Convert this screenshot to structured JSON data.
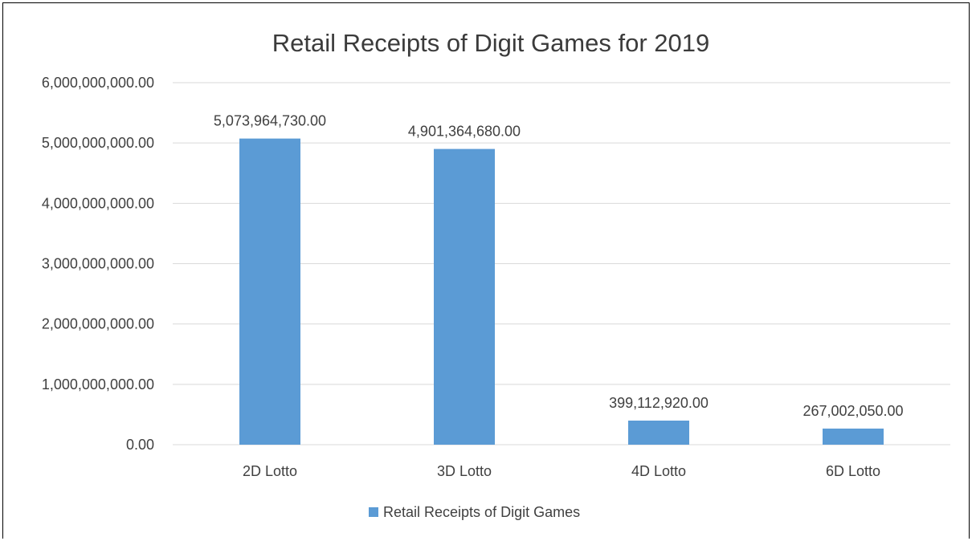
{
  "chart_data": {
    "type": "bar",
    "title": "Retail Receipts of Digit Games for 2019",
    "categories": [
      "2D Lotto",
      "3D Lotto",
      "4D Lotto",
      "6D Lotto"
    ],
    "series": [
      {
        "name": "Retail Receipts of Digit Games",
        "values": [
          5073964730.0,
          4901364680.0,
          399112920.0,
          267002050.0
        ],
        "labels": [
          "5,073,964,730.00",
          "4,901,364,680.00",
          "399,112,920.00",
          "267,002,050.00"
        ]
      }
    ],
    "ylim": [
      0,
      6000000000
    ],
    "yticks": [
      0,
      1000000000,
      2000000000,
      3000000000,
      4000000000,
      5000000000,
      6000000000
    ],
    "ytick_labels": [
      "0.00",
      "1,000,000,000.00",
      "2,000,000,000.00",
      "3,000,000,000.00",
      "4,000,000,000.00",
      "5,000,000,000.00",
      "6,000,000,000.00"
    ],
    "grid": true,
    "legend": "bottom",
    "bar_color": "#5b9bd5"
  }
}
